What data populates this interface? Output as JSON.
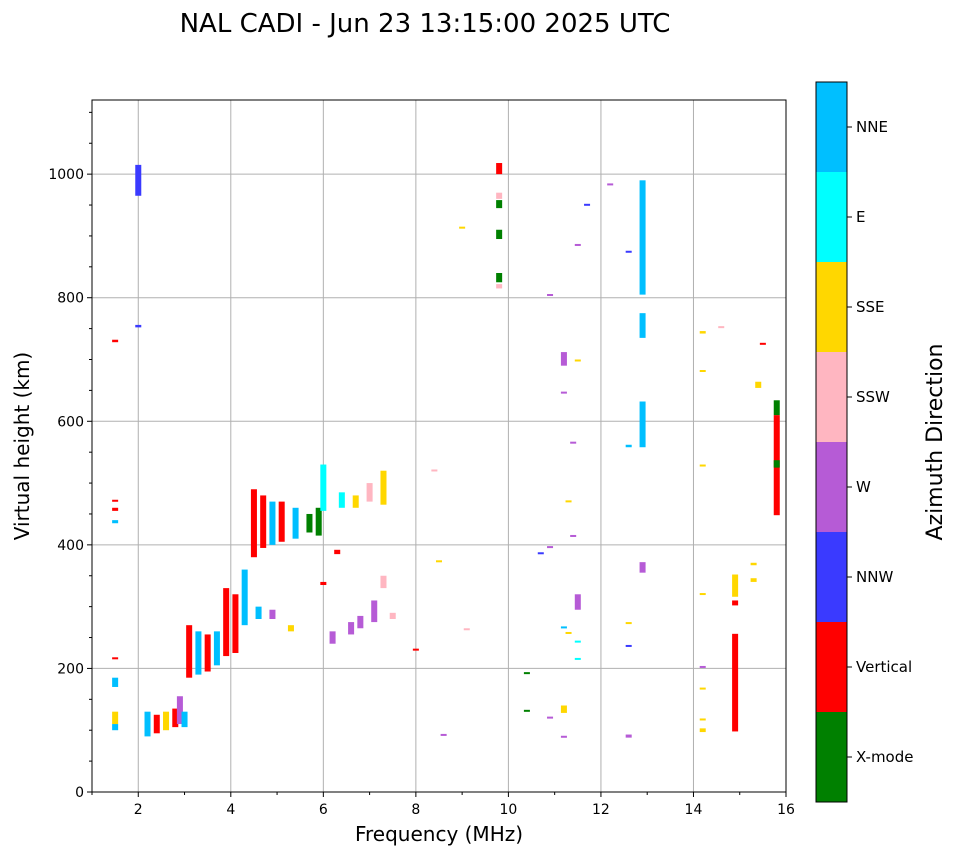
{
  "chart_data": {
    "type": "scatter",
    "title": "NAL CADI - Jun 23 13:15:00 2025 UTC",
    "xlabel": "Frequency (MHz)",
    "ylabel": "Virtual height (km)",
    "xlim": [
      1,
      16
    ],
    "ylim": [
      0,
      1120
    ],
    "xticks": [
      2,
      4,
      6,
      8,
      10,
      12,
      14,
      16
    ],
    "yticks": [
      0,
      200,
      400,
      600,
      800,
      1000
    ],
    "grid": true,
    "colorbar": {
      "title": "Azimuth Direction",
      "categories": [
        {
          "name": "X-mode",
          "color": "#008000"
        },
        {
          "name": "Vertical",
          "color": "#ff0000"
        },
        {
          "name": "NNW",
          "color": "#3a3aff"
        },
        {
          "name": "W",
          "color": "#b65bd6"
        },
        {
          "name": "SSW",
          "color": "#ffb6c1"
        },
        {
          "name": "SSE",
          "color": "#ffd700"
        },
        {
          "name": "E",
          "color": "#00ffff"
        },
        {
          "name": "NNE",
          "color": "#00bfff"
        }
      ]
    },
    "segments": [
      {
        "x": 1.5,
        "y": 100,
        "y2": 110,
        "dir": "NNE"
      },
      {
        "x": 1.5,
        "y": 110,
        "y2": 130,
        "dir": "SSE"
      },
      {
        "x": 1.5,
        "y": 170,
        "y2": 185,
        "dir": "NNE"
      },
      {
        "x": 1.5,
        "y": 215,
        "y2": 218,
        "dir": "Vertical"
      },
      {
        "x": 1.5,
        "y": 435,
        "y2": 440,
        "dir": "NNE"
      },
      {
        "x": 1.5,
        "y": 455,
        "y2": 460,
        "dir": "Vertical"
      },
      {
        "x": 1.5,
        "y": 470,
        "y2": 473,
        "dir": "Vertical"
      },
      {
        "x": 1.5,
        "y": 728,
        "y2": 732,
        "dir": "Vertical"
      },
      {
        "x": 2.0,
        "y": 752,
        "y2": 756,
        "dir": "NNW"
      },
      {
        "x": 2.0,
        "y": 965,
        "y2": 1015,
        "dir": "NNW"
      },
      {
        "x": 2.2,
        "y": 90,
        "y2": 130,
        "dir": "NNE"
      },
      {
        "x": 2.4,
        "y": 95,
        "y2": 125,
        "dir": "Vertical"
      },
      {
        "x": 2.6,
        "y": 100,
        "y2": 130,
        "dir": "SSE"
      },
      {
        "x": 2.8,
        "y": 105,
        "y2": 135,
        "dir": "Vertical"
      },
      {
        "x": 2.9,
        "y": 110,
        "y2": 155,
        "dir": "W"
      },
      {
        "x": 3.0,
        "y": 105,
        "y2": 130,
        "dir": "NNE"
      },
      {
        "x": 3.1,
        "y": 185,
        "y2": 270,
        "dir": "Vertical"
      },
      {
        "x": 3.3,
        "y": 190,
        "y2": 260,
        "dir": "NNE"
      },
      {
        "x": 3.5,
        "y": 195,
        "y2": 255,
        "dir": "Vertical"
      },
      {
        "x": 3.7,
        "y": 205,
        "y2": 260,
        "dir": "NNE"
      },
      {
        "x": 3.9,
        "y": 220,
        "y2": 330,
        "dir": "Vertical"
      },
      {
        "x": 4.1,
        "y": 225,
        "y2": 320,
        "dir": "Vertical"
      },
      {
        "x": 4.3,
        "y": 270,
        "y2": 360,
        "dir": "NNE"
      },
      {
        "x": 4.5,
        "y": 380,
        "y2": 490,
        "dir": "Vertical"
      },
      {
        "x": 4.7,
        "y": 395,
        "y2": 480,
        "dir": "Vertical"
      },
      {
        "x": 4.9,
        "y": 400,
        "y2": 470,
        "dir": "NNE"
      },
      {
        "x": 5.1,
        "y": 405,
        "y2": 470,
        "dir": "Vertical"
      },
      {
        "x": 5.4,
        "y": 410,
        "y2": 460,
        "dir": "NNE"
      },
      {
        "x": 5.7,
        "y": 420,
        "y2": 450,
        "dir": "X-mode"
      },
      {
        "x": 5.9,
        "y": 415,
        "y2": 460,
        "dir": "X-mode"
      },
      {
        "x": 6.0,
        "y": 455,
        "y2": 530,
        "dir": "E"
      },
      {
        "x": 6.4,
        "y": 460,
        "y2": 485,
        "dir": "E"
      },
      {
        "x": 6.7,
        "y": 460,
        "y2": 480,
        "dir": "SSE"
      },
      {
        "x": 7.0,
        "y": 470,
        "y2": 500,
        "dir": "SSW"
      },
      {
        "x": 7.3,
        "y": 465,
        "y2": 520,
        "dir": "SSE"
      },
      {
        "x": 4.6,
        "y": 280,
        "y2": 300,
        "dir": "NNE"
      },
      {
        "x": 4.9,
        "y": 280,
        "y2": 295,
        "dir": "W"
      },
      {
        "x": 5.3,
        "y": 260,
        "y2": 270,
        "dir": "SSE"
      },
      {
        "x": 6.2,
        "y": 240,
        "y2": 260,
        "dir": "W"
      },
      {
        "x": 6.6,
        "y": 255,
        "y2": 275,
        "dir": "W"
      },
      {
        "x": 6.8,
        "y": 265,
        "y2": 285,
        "dir": "W"
      },
      {
        "x": 7.1,
        "y": 275,
        "y2": 310,
        "dir": "W"
      },
      {
        "x": 7.3,
        "y": 330,
        "y2": 350,
        "dir": "SSW"
      },
      {
        "x": 7.5,
        "y": 280,
        "y2": 290,
        "dir": "SSW"
      },
      {
        "x": 6.3,
        "y": 385,
        "y2": 392,
        "dir": "Vertical"
      },
      {
        "x": 6.0,
        "y": 335,
        "y2": 340,
        "dir": "Vertical"
      },
      {
        "x": 8.0,
        "y": 230,
        "y2": 232,
        "dir": "Vertical"
      },
      {
        "x": 8.4,
        "y": 520,
        "y2": 522,
        "dir": "SSW"
      },
      {
        "x": 8.5,
        "y": 373,
        "y2": 375,
        "dir": "SSE"
      },
      {
        "x": 8.6,
        "y": 92,
        "y2": 94,
        "dir": "W"
      },
      {
        "x": 9.0,
        "y": 913,
        "y2": 915,
        "dir": "SSE"
      },
      {
        "x": 9.1,
        "y": 263,
        "y2": 265,
        "dir": "SSW"
      },
      {
        "x": 9.8,
        "y": 1000,
        "y2": 1018,
        "dir": "Vertical"
      },
      {
        "x": 9.8,
        "y": 960,
        "y2": 970,
        "dir": "SSW"
      },
      {
        "x": 9.8,
        "y": 945,
        "y2": 958,
        "dir": "X-mode"
      },
      {
        "x": 9.8,
        "y": 895,
        "y2": 910,
        "dir": "X-mode"
      },
      {
        "x": 9.8,
        "y": 825,
        "y2": 840,
        "dir": "X-mode"
      },
      {
        "x": 9.8,
        "y": 815,
        "y2": 822,
        "dir": "SSW"
      },
      {
        "x": 10.4,
        "y": 192,
        "y2": 194,
        "dir": "X-mode"
      },
      {
        "x": 10.4,
        "y": 131,
        "y2": 133,
        "dir": "X-mode"
      },
      {
        "x": 10.7,
        "y": 385,
        "y2": 388,
        "dir": "NNW"
      },
      {
        "x": 10.9,
        "y": 395,
        "y2": 398,
        "dir": "W"
      },
      {
        "x": 10.9,
        "y": 804,
        "y2": 806,
        "dir": "W"
      },
      {
        "x": 10.9,
        "y": 120,
        "y2": 122,
        "dir": "W"
      },
      {
        "x": 11.2,
        "y": 690,
        "y2": 712,
        "dir": "W"
      },
      {
        "x": 11.2,
        "y": 645,
        "y2": 648,
        "dir": "W"
      },
      {
        "x": 11.2,
        "y": 265,
        "y2": 268,
        "dir": "NNE"
      },
      {
        "x": 11.2,
        "y": 128,
        "y2": 140,
        "dir": "SSE"
      },
      {
        "x": 11.2,
        "y": 89,
        "y2": 91,
        "dir": "W"
      },
      {
        "x": 11.3,
        "y": 470,
        "y2": 472,
        "dir": "SSE"
      },
      {
        "x": 11.3,
        "y": 257,
        "y2": 259,
        "dir": "SSE"
      },
      {
        "x": 11.4,
        "y": 565,
        "y2": 567,
        "dir": "W"
      },
      {
        "x": 11.4,
        "y": 413,
        "y2": 416,
        "dir": "W"
      },
      {
        "x": 11.5,
        "y": 885,
        "y2": 887,
        "dir": "W"
      },
      {
        "x": 11.5,
        "y": 697,
        "y2": 700,
        "dir": "SSE"
      },
      {
        "x": 11.5,
        "y": 295,
        "y2": 320,
        "dir": "W"
      },
      {
        "x": 11.5,
        "y": 243,
        "y2": 245,
        "dir": "E"
      },
      {
        "x": 11.5,
        "y": 215,
        "y2": 217,
        "dir": "E"
      },
      {
        "x": 11.7,
        "y": 950,
        "y2": 952,
        "dir": "NNW"
      },
      {
        "x": 12.2,
        "y": 983,
        "y2": 985,
        "dir": "W"
      },
      {
        "x": 12.6,
        "y": 873,
        "y2": 876,
        "dir": "NNW"
      },
      {
        "x": 12.6,
        "y": 558,
        "y2": 562,
        "dir": "NNE"
      },
      {
        "x": 12.6,
        "y": 272,
        "y2": 275,
        "dir": "SSE"
      },
      {
        "x": 12.6,
        "y": 236,
        "y2": 238,
        "dir": "NNW"
      },
      {
        "x": 12.6,
        "y": 88,
        "y2": 93,
        "dir": "W"
      },
      {
        "x": 12.9,
        "y": 805,
        "y2": 990,
        "dir": "NNE"
      },
      {
        "x": 12.9,
        "y": 735,
        "y2": 775,
        "dir": "NNE"
      },
      {
        "x": 12.9,
        "y": 558,
        "y2": 632,
        "dir": "NNE"
      },
      {
        "x": 12.9,
        "y": 355,
        "y2": 372,
        "dir": "W"
      },
      {
        "x": 14.2,
        "y": 742,
        "y2": 746,
        "dir": "SSE"
      },
      {
        "x": 14.2,
        "y": 680,
        "y2": 683,
        "dir": "SSE"
      },
      {
        "x": 14.2,
        "y": 527,
        "y2": 530,
        "dir": "SSE"
      },
      {
        "x": 14.2,
        "y": 319,
        "y2": 322,
        "dir": "SSE"
      },
      {
        "x": 14.2,
        "y": 201,
        "y2": 204,
        "dir": "W"
      },
      {
        "x": 14.2,
        "y": 166,
        "y2": 169,
        "dir": "SSE"
      },
      {
        "x": 14.2,
        "y": 116,
        "y2": 119,
        "dir": "SSE"
      },
      {
        "x": 14.2,
        "y": 97,
        "y2": 103,
        "dir": "SSE"
      },
      {
        "x": 14.6,
        "y": 752,
        "y2": 754,
        "dir": "SSW"
      },
      {
        "x": 14.9,
        "y": 98,
        "y2": 256,
        "dir": "Vertical"
      },
      {
        "x": 14.9,
        "y": 302,
        "y2": 310,
        "dir": "Vertical"
      },
      {
        "x": 14.9,
        "y": 316,
        "y2": 352,
        "dir": "SSE"
      },
      {
        "x": 15.3,
        "y": 340,
        "y2": 346,
        "dir": "SSE"
      },
      {
        "x": 15.3,
        "y": 367,
        "y2": 371,
        "dir": "SSE"
      },
      {
        "x": 15.4,
        "y": 654,
        "y2": 664,
        "dir": "SSE"
      },
      {
        "x": 15.5,
        "y": 724,
        "y2": 727,
        "dir": "Vertical"
      },
      {
        "x": 15.8,
        "y": 448,
        "y2": 610,
        "dir": "Vertical"
      },
      {
        "x": 15.8,
        "y": 610,
        "y2": 634,
        "dir": "X-mode"
      },
      {
        "x": 15.8,
        "y": 525,
        "y2": 537,
        "dir": "X-mode"
      }
    ]
  }
}
